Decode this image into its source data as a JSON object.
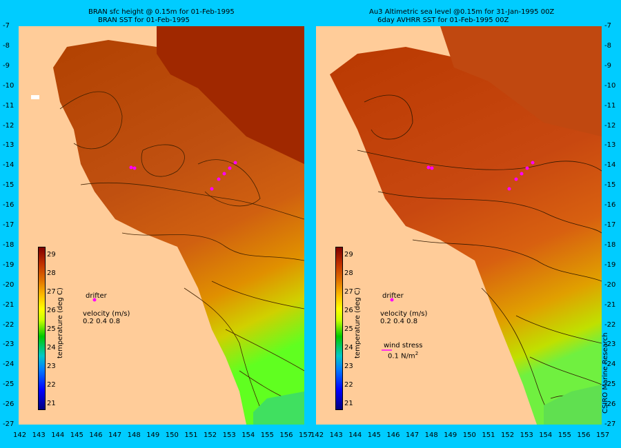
{
  "left": {
    "title1": "BRAN sfc height @ 0.15m for 01-Feb-1995",
    "title2": "BRAN SST for 01-Feb-1995"
  },
  "right": {
    "title1": "Au3 Altimetric sea level  @0.15m  for 31-Jan-1995 00Z",
    "title2": "6day AVHRR SST for 01-Feb-1995 00Z"
  },
  "lat_labels": [
    "-7",
    "-8",
    "-9",
    "-10",
    "-11",
    "-12",
    "-13",
    "-14",
    "-15",
    "-16",
    "-17",
    "-18",
    "-19",
    "-20",
    "-21",
    "-22",
    "-23",
    "-24",
    "-25",
    "-26",
    "-27"
  ],
  "lon_labels": [
    "142",
    "143",
    "144",
    "145",
    "146",
    "147",
    "148",
    "149",
    "150",
    "151",
    "152",
    "153",
    "154",
    "155",
    "156",
    "157"
  ],
  "colorbar": {
    "label": "temperature (deg C)",
    "ticks": [
      "29",
      "28",
      "27",
      "26",
      "25",
      "24",
      "23",
      "22",
      "21"
    ]
  },
  "legend": {
    "drifter": "drifter",
    "velocity": "velocity (m/s)",
    "velocity_scale": "0.2 0.4 0.8",
    "wind_stress": "wind stress",
    "wind_value": "0.1 N/m",
    "wind_exp": "2"
  },
  "credit": "CSIRO Marine Research",
  "colors": {
    "background": "#00ccff",
    "land": "#ffcc99",
    "drifter": "#ff00ff"
  }
}
